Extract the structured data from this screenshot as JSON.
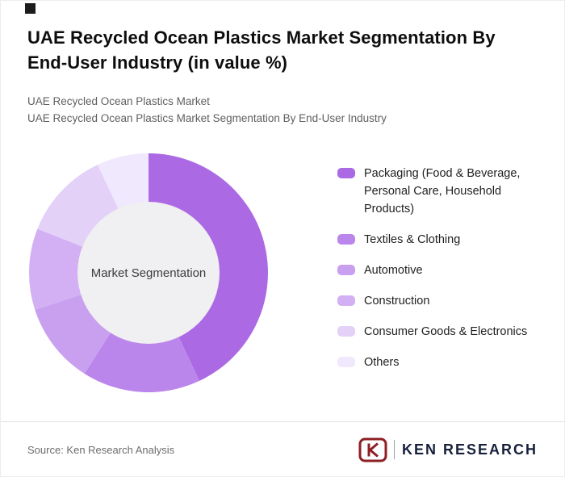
{
  "header": {
    "title": "UAE Recycled Ocean Plastics Market Segmentation By End-User Industry (in value %)",
    "subtitle1": "UAE Recycled Ocean Plastics Market",
    "subtitle2": "UAE Recycled Ocean Plastics Market Segmentation By End-User Industry"
  },
  "chart_data": {
    "type": "pie",
    "donut": true,
    "title": "UAE Recycled Ocean Plastics Market Segmentation By End-User Industry (in value %)",
    "center_label": "Market Segmentation",
    "legend_position": "right",
    "categories": [
      "Packaging (Food & Beverage, Personal Care, Household Products)",
      "Textiles & Clothing",
      "Automotive",
      "Construction",
      "Consumer Goods & Electronics",
      "Others"
    ],
    "values": [
      43,
      16,
      11,
      11,
      12,
      7
    ],
    "colors": [
      "#ab69e4",
      "#bb86ec",
      "#c99ff0",
      "#d2b0f3",
      "#e3d1f8",
      "#f0e8fc"
    ],
    "center_fill": "#f0eff1",
    "start_angle_deg": 0,
    "direction": "clockwise"
  },
  "footer": {
    "source": "Source: Ken Research Analysis",
    "logo_letter": "K",
    "logo_text": "KEN RESEARCH",
    "logo_color": "#8e1f24",
    "logo_text_color": "#16203a"
  }
}
